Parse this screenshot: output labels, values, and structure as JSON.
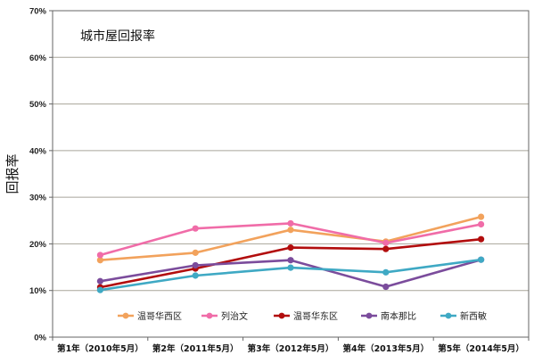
{
  "chart_data": {
    "type": "line",
    "title": "城市屋回报率",
    "ylabel": "回报率",
    "xlabel": "",
    "categories": [
      "第1年（2010年5月）",
      "第2年（2011年5月）",
      "第3年（2012年5月）",
      "第4年（2013年5月）",
      "第5年（2014年5月）"
    ],
    "ylim": [
      0,
      70
    ],
    "yticks": [
      "0%",
      "10%",
      "20%",
      "30%",
      "40%",
      "50%",
      "60%",
      "70%"
    ],
    "grid": true,
    "legend_position": "bottom-inside",
    "series": [
      {
        "name": "温哥华西区",
        "color": "#f2a25c",
        "values": [
          16.5,
          18.1,
          23.0,
          20.5,
          25.8
        ]
      },
      {
        "name": "列治文",
        "color": "#f06ca8",
        "values": [
          17.6,
          23.3,
          24.4,
          20.2,
          24.2
        ]
      },
      {
        "name": "温哥华东区",
        "color": "#b20d0d",
        "values": [
          10.7,
          14.7,
          19.2,
          18.9,
          21.0
        ]
      },
      {
        "name": "南本那比",
        "color": "#7b4c9c",
        "values": [
          12.0,
          15.4,
          16.5,
          10.8,
          16.6
        ]
      },
      {
        "name": "新西敏",
        "color": "#3fa9c4",
        "values": [
          10.1,
          13.2,
          14.9,
          13.9,
          16.6
        ]
      }
    ]
  }
}
